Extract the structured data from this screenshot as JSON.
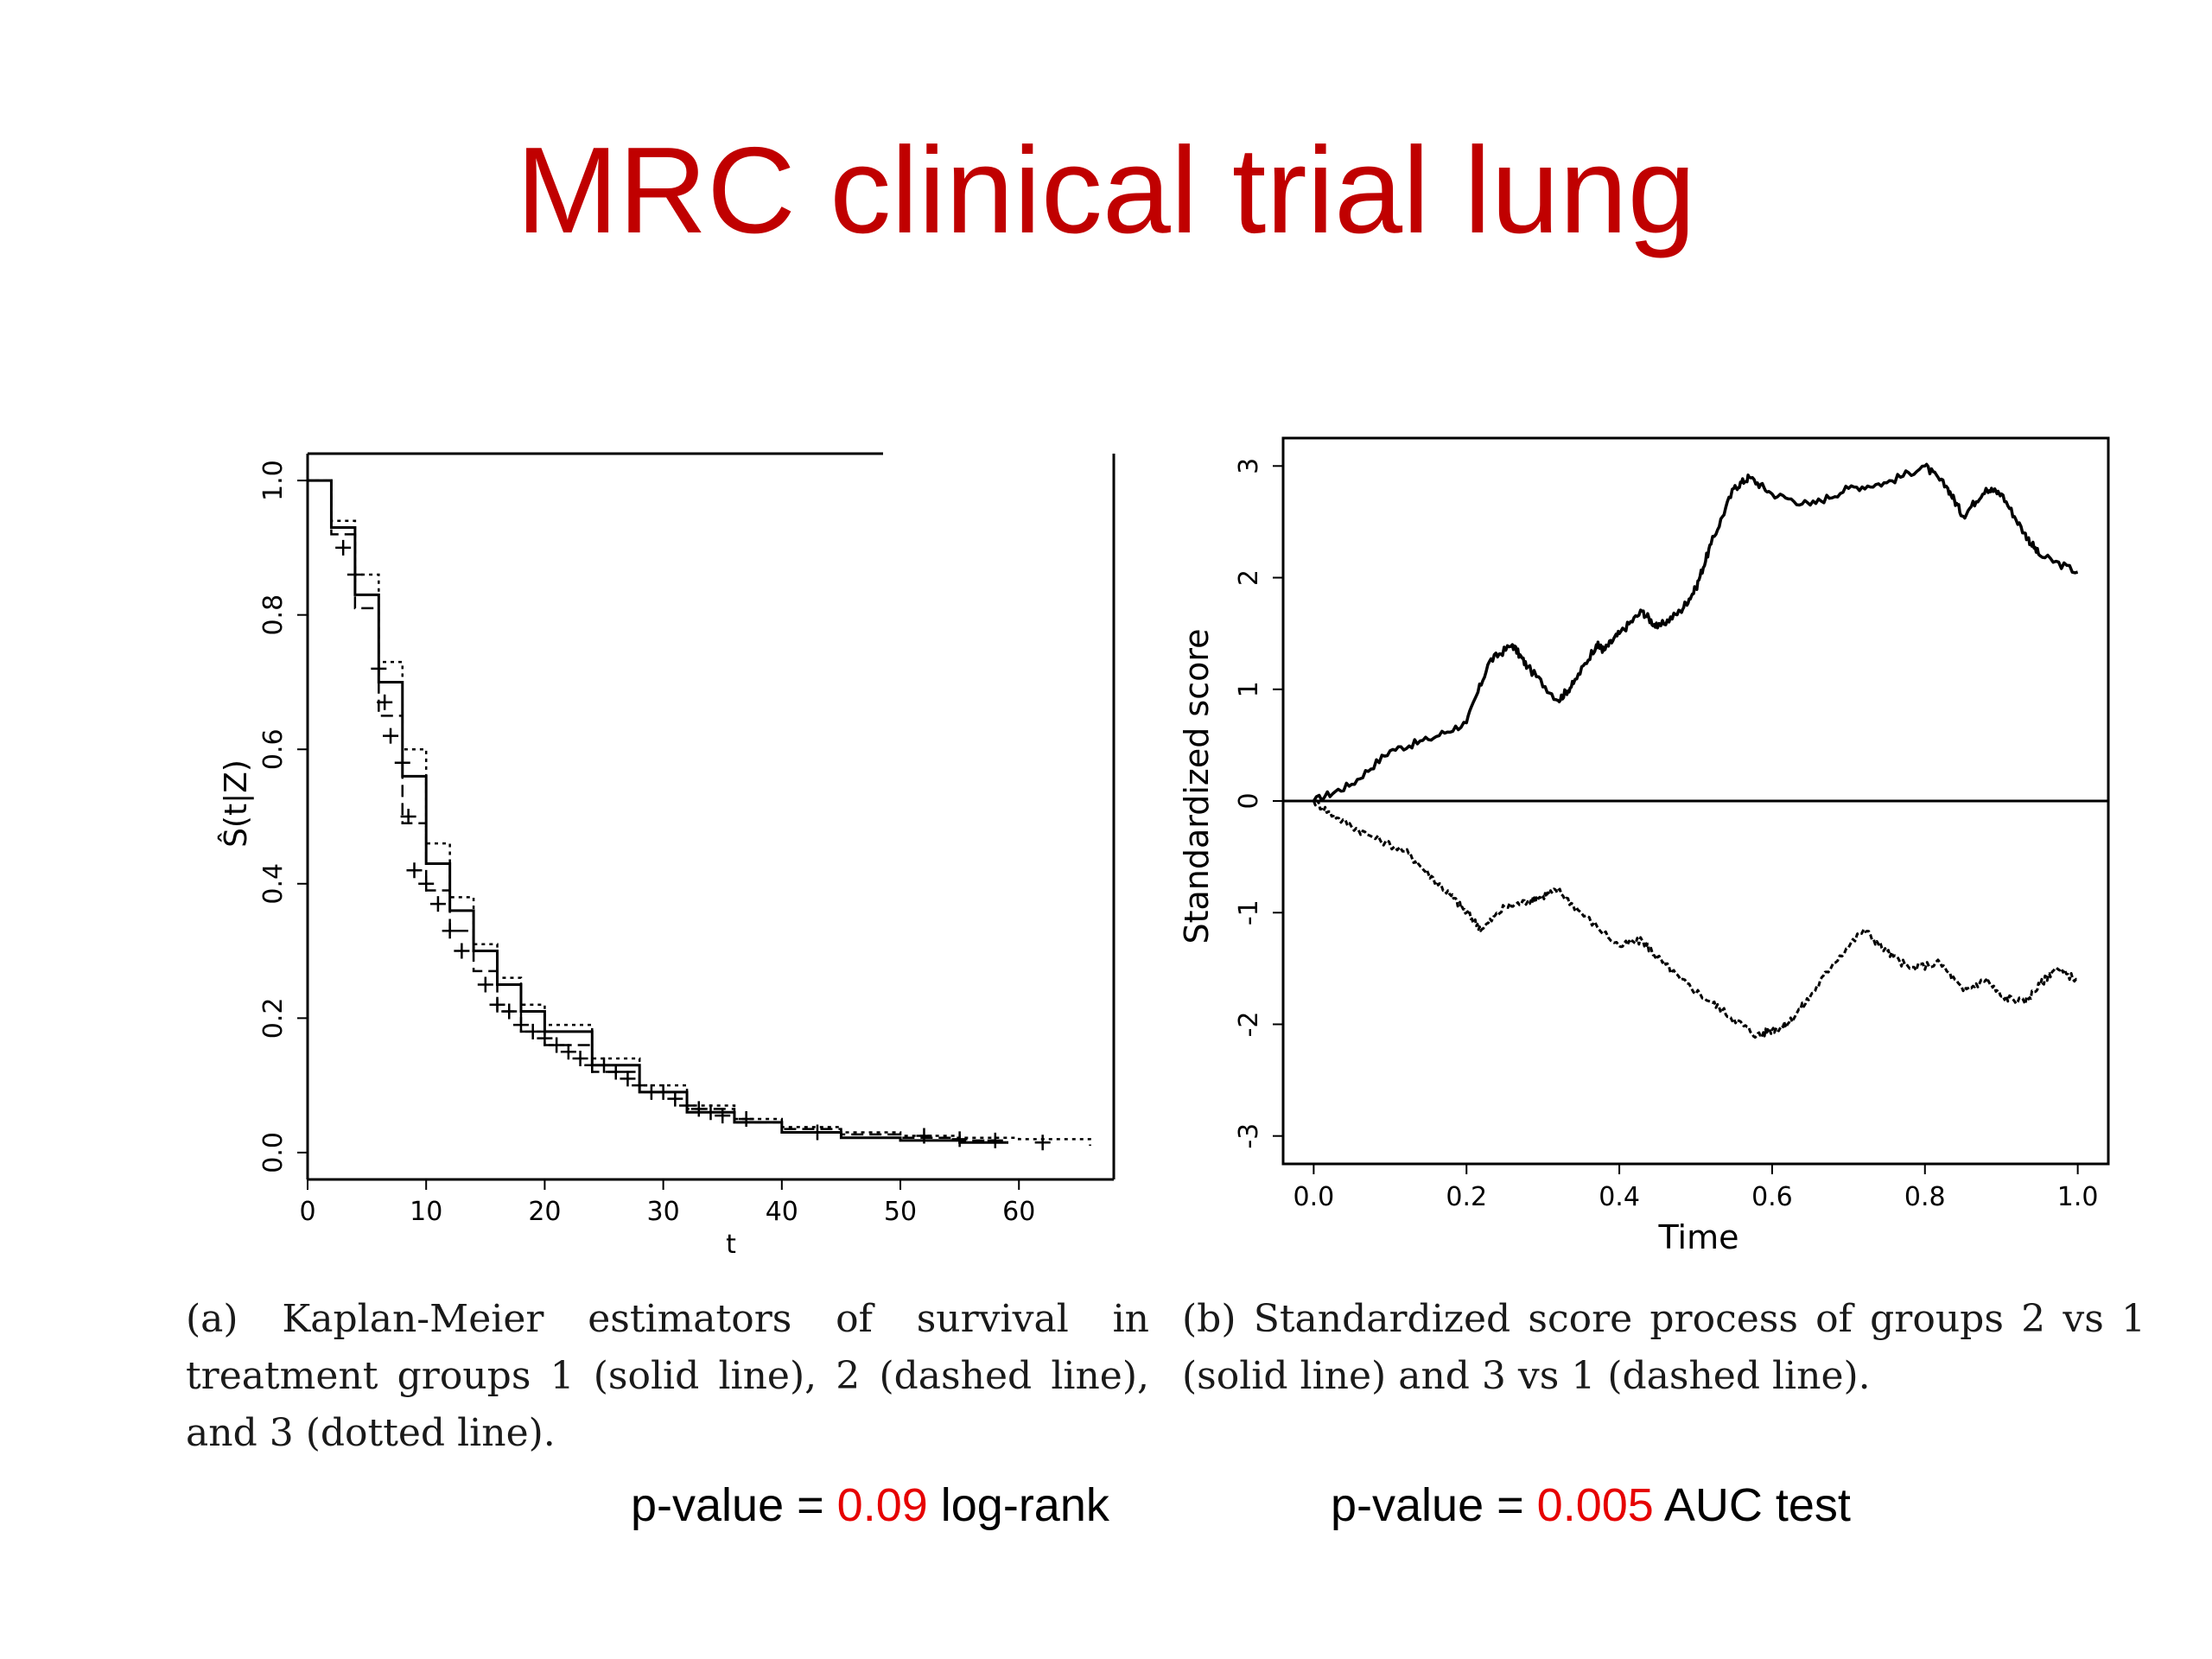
{
  "title": "MRC clinical trial lung",
  "captions": {
    "left": "(a) Kaplan-Meier estimators of survival in treatment groups 1 (solid line), 2 (dashed line), and 3 (dotted line).",
    "right": "(b) Standardized score process of groups 2 vs 1 (solid line) and 3 vs 1 (dashed line)."
  },
  "pvalues": {
    "left": {
      "prefix": "p-value = ",
      "value": "0.09",
      "suffix": " log-rank"
    },
    "right": {
      "prefix": "p-value = ",
      "value": "0.005",
      "suffix": "  AUC test"
    }
  },
  "colors": {
    "title": "#c00000",
    "pvalue": "#e60000",
    "lines": "#000000"
  },
  "chart_data": [
    {
      "type": "line",
      "title": "",
      "xlabel": "t",
      "ylabel": "Ŝ(t|Z)",
      "xlim": [
        0,
        68
      ],
      "ylim": [
        -0.04,
        1.04
      ],
      "x_ticks": [
        "0",
        "10",
        "20",
        "30",
        "40",
        "50",
        "60"
      ],
      "y_ticks": [
        "0.0",
        "0.2",
        "0.4",
        "0.6",
        "0.8",
        "1.0"
      ],
      "grid": false,
      "legend": "none",
      "series": [
        {
          "style": "solid",
          "x": [
            0,
            2,
            4,
            6,
            8,
            10,
            12,
            14,
            16,
            18,
            20,
            24,
            28,
            32,
            36,
            40,
            45,
            50,
            55,
            59
          ],
          "y": [
            1.0,
            0.93,
            0.83,
            0.7,
            0.56,
            0.43,
            0.36,
            0.3,
            0.25,
            0.21,
            0.18,
            0.13,
            0.09,
            0.06,
            0.045,
            0.03,
            0.022,
            0.018,
            0.015,
            0.013
          ]
        },
        {
          "style": "dashed",
          "x": [
            0,
            2,
            4,
            6,
            8,
            10,
            12,
            14,
            16,
            18,
            20,
            24,
            28,
            32,
            36,
            40,
            45,
            50,
            55,
            58
          ],
          "y": [
            1.0,
            0.92,
            0.81,
            0.65,
            0.49,
            0.39,
            0.33,
            0.27,
            0.21,
            0.18,
            0.16,
            0.12,
            0.09,
            0.065,
            0.045,
            0.035,
            0.027,
            0.022,
            0.018,
            0.016
          ]
        },
        {
          "style": "dotted",
          "x": [
            0,
            2,
            4,
            6,
            8,
            10,
            12,
            14,
            16,
            18,
            20,
            24,
            28,
            32,
            36,
            40,
            45,
            50,
            55,
            60,
            66
          ],
          "y": [
            1.0,
            0.94,
            0.86,
            0.73,
            0.6,
            0.46,
            0.38,
            0.31,
            0.26,
            0.22,
            0.19,
            0.14,
            0.1,
            0.07,
            0.05,
            0.038,
            0.03,
            0.025,
            0.022,
            0.02,
            0.01
          ]
        }
      ],
      "censor_marks": {
        "x": [
          3,
          4,
          6,
          6.5,
          7,
          8,
          8.5,
          9,
          10,
          11,
          12,
          13,
          15,
          16,
          17,
          18,
          19,
          20,
          21,
          22,
          23,
          24,
          25,
          26,
          27,
          28,
          29,
          30,
          31,
          32,
          33,
          34,
          35,
          37,
          43,
          52,
          55,
          58,
          62
        ],
        "y": [
          0.9,
          0.86,
          0.72,
          0.67,
          0.62,
          0.58,
          0.5,
          0.42,
          0.4,
          0.37,
          0.33,
          0.3,
          0.25,
          0.22,
          0.21,
          0.19,
          0.18,
          0.17,
          0.16,
          0.15,
          0.14,
          0.13,
          0.13,
          0.12,
          0.11,
          0.1,
          0.09,
          0.09,
          0.08,
          0.07,
          0.065,
          0.06,
          0.055,
          0.05,
          0.03,
          0.025,
          0.02,
          0.018,
          0.015
        ]
      }
    },
    {
      "type": "line",
      "title": "",
      "xlabel": "Time",
      "ylabel": "Standardized score",
      "xlim": [
        -0.04,
        1.04
      ],
      "ylim": [
        -3.25,
        3.25
      ],
      "x_ticks": [
        "0.0",
        "0.2",
        "0.4",
        "0.6",
        "0.8",
        "1.0"
      ],
      "y_ticks": [
        "-3",
        "-2",
        "-1",
        "0",
        "1",
        "2",
        "3"
      ],
      "grid": false,
      "legend": "none",
      "reference_line": 0,
      "series": [
        {
          "style": "solid",
          "x": [
            0.0,
            0.05,
            0.1,
            0.15,
            0.2,
            0.23,
            0.26,
            0.28,
            0.32,
            0.34,
            0.37,
            0.38,
            0.4,
            0.43,
            0.45,
            0.48,
            0.5,
            0.52,
            0.55,
            0.57,
            0.6,
            0.65,
            0.7,
            0.75,
            0.8,
            0.83,
            0.85,
            0.88,
            0.9,
            0.93,
            0.95,
            1.0
          ],
          "y": [
            0.0,
            0.15,
            0.45,
            0.55,
            0.7,
            1.25,
            1.4,
            1.2,
            0.9,
            1.05,
            1.4,
            1.35,
            1.5,
            1.7,
            1.55,
            1.7,
            1.9,
            2.3,
            2.8,
            2.9,
            2.75,
            2.65,
            2.8,
            2.85,
            3.0,
            2.8,
            2.55,
            2.8,
            2.75,
            2.4,
            2.2,
            2.05
          ]
        },
        {
          "style": "dashed",
          "x": [
            0.0,
            0.03,
            0.07,
            0.12,
            0.15,
            0.18,
            0.2,
            0.22,
            0.25,
            0.28,
            0.3,
            0.32,
            0.35,
            0.4,
            0.43,
            0.45,
            0.48,
            0.52,
            0.55,
            0.58,
            0.6,
            0.62,
            0.65,
            0.68,
            0.72,
            0.75,
            0.78,
            0.82,
            0.85,
            0.88,
            0.9,
            0.93,
            0.95,
            0.97,
            1.0
          ],
          "y": [
            0.0,
            -0.15,
            -0.3,
            -0.45,
            -0.65,
            -0.85,
            -1.0,
            -1.15,
            -0.95,
            -0.9,
            -0.85,
            -0.8,
            -1.0,
            -1.3,
            -1.25,
            -1.4,
            -1.6,
            -1.8,
            -1.95,
            -2.1,
            -2.05,
            -2.0,
            -1.75,
            -1.45,
            -1.15,
            -1.35,
            -1.5,
            -1.45,
            -1.7,
            -1.6,
            -1.75,
            -1.8,
            -1.65,
            -1.5,
            -1.6
          ]
        }
      ]
    }
  ]
}
